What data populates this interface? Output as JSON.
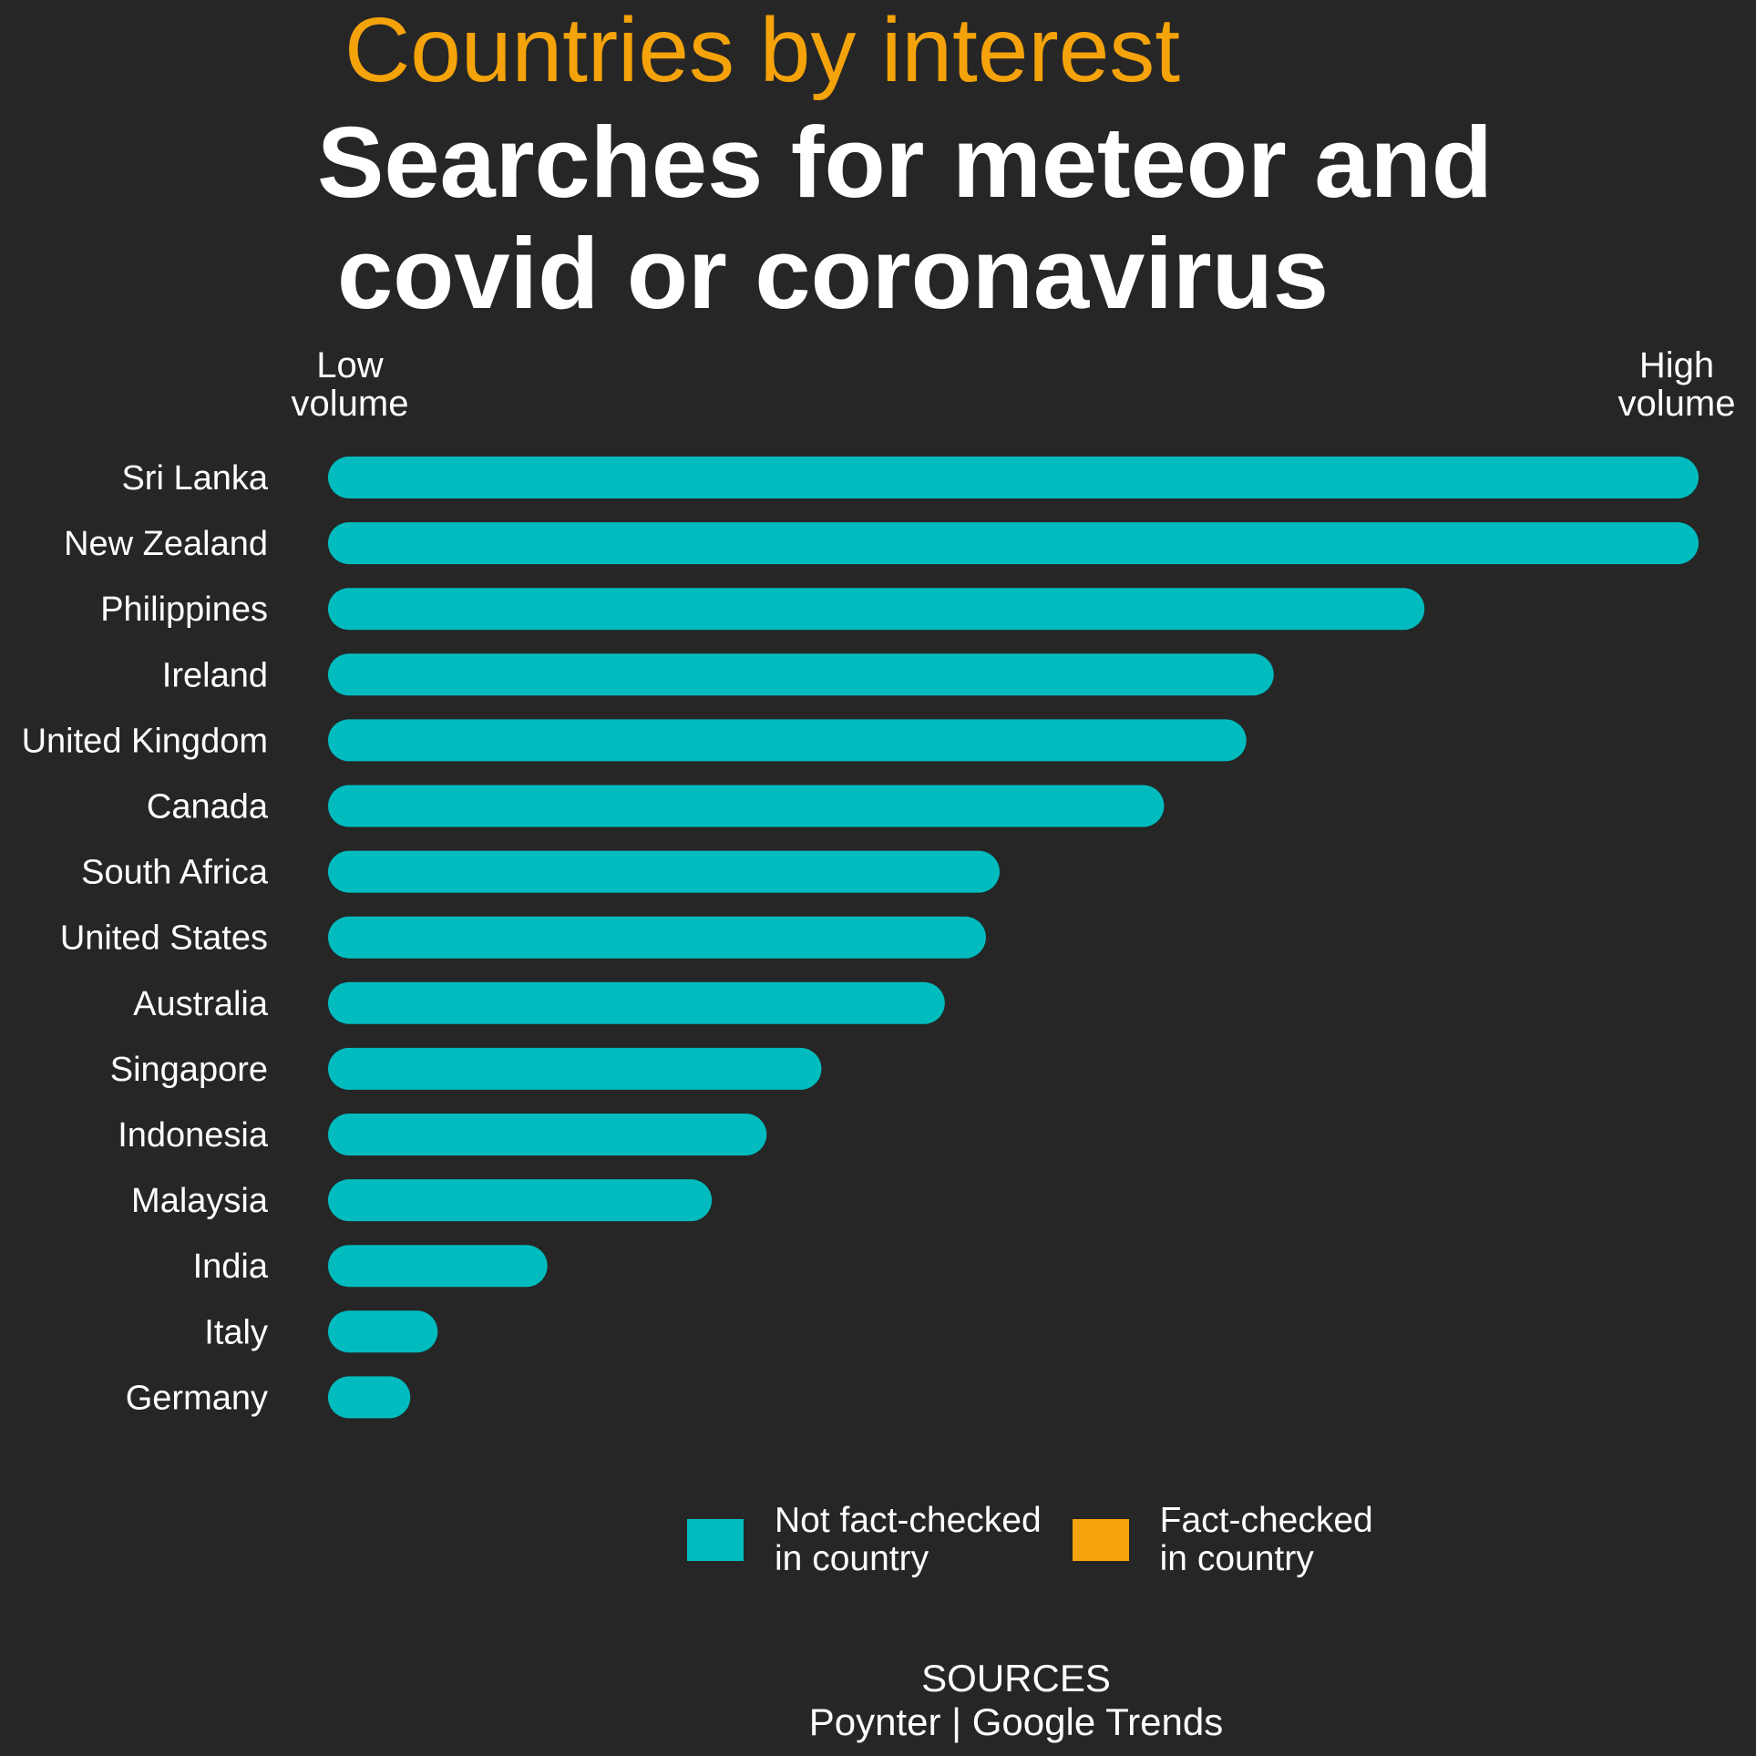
{
  "header": {
    "kicker": "Countries by interest",
    "title_line1": "Searches for meteor and",
    "title_line2": "covid or coronavirus"
  },
  "scale": {
    "low": "Low\nvolume",
    "high": "High\nvolume"
  },
  "colors": {
    "background": "#262626",
    "not_fact_checked": "#00bcbf",
    "fact_checked": "#f5a30a",
    "text": "#ffffff"
  },
  "legend": [
    {
      "label": "Not fact-checked\nin country",
      "color": "#00bcbf"
    },
    {
      "label": "Fact-checked\nin country",
      "color": "#f5a30a"
    }
  ],
  "sources": {
    "heading": "SOURCES",
    "text": "Poynter | Google Trends"
  },
  "chart_data": {
    "type": "bar",
    "orientation": "horizontal",
    "categories": [
      "Sri Lanka",
      "New Zealand",
      "Philippines",
      "Ireland",
      "United Kingdom",
      "Canada",
      "South Africa",
      "United States",
      "Australia",
      "Singapore",
      "Indonesia",
      "Malaysia",
      "India",
      "Italy",
      "Germany"
    ],
    "values": [
      100,
      100,
      80,
      69,
      67,
      61,
      49,
      48,
      45,
      36,
      32,
      28,
      16,
      8,
      6
    ],
    "colors": [
      "#00bcbf",
      "#00bcbf",
      "#00bcbf",
      "#00bcbf",
      "#00bcbf",
      "#00bcbf",
      "#00bcbf",
      "#00bcbf",
      "#00bcbf",
      "#00bcbf",
      "#00bcbf",
      "#00bcbf",
      "#00bcbf",
      "#00bcbf",
      "#00bcbf"
    ],
    "title": "Searches for meteor and covid or coronavirus",
    "subtitle": "Countries by interest",
    "xlim": [
      0,
      100
    ],
    "grid": false,
    "legend_position": "bottom"
  }
}
